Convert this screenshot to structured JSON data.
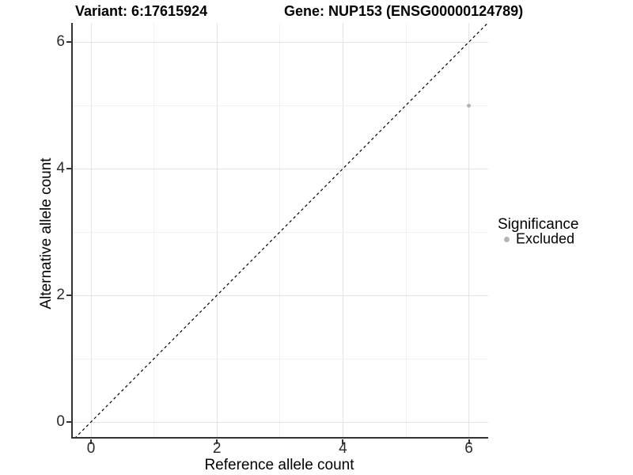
{
  "header": {
    "variant_title": "Variant: 6:17615924",
    "gene_title": "Gene: NUP153 (ENSG00000124789)"
  },
  "legend": {
    "title": "Significance",
    "items": [
      {
        "label": "Excluded",
        "color": "#b4b4b4"
      }
    ]
  },
  "colors": {
    "grid_major": "#e4e4e4",
    "grid_minor": "#f1f1f1",
    "axis_line": "#333333",
    "tick_text": "#2b2b2b",
    "reference_line": "#000000",
    "point": "#b4b4b4",
    "background": "#ffffff"
  },
  "chart_data": {
    "type": "scatter",
    "title": "Variant: 6:17615924   Gene: NUP153 (ENSG00000124789)",
    "xlabel": "Reference allele count",
    "ylabel": "Alternative allele count",
    "x_ticks": [
      0,
      2,
      4,
      6
    ],
    "y_ticks": [
      0,
      2,
      4,
      6
    ],
    "xlim": [
      -0.3,
      6.33
    ],
    "ylim": [
      -0.26,
      6.3
    ],
    "grid": "major at even values, minor at odd values",
    "legend_position": "right",
    "series": [
      {
        "name": "Excluded",
        "color": "#b4b4b4",
        "points": [
          {
            "x": 6,
            "y": 5
          }
        ]
      }
    ],
    "reference_line": {
      "type": "identity y=x",
      "style": "dashed",
      "color": "#000000"
    }
  }
}
